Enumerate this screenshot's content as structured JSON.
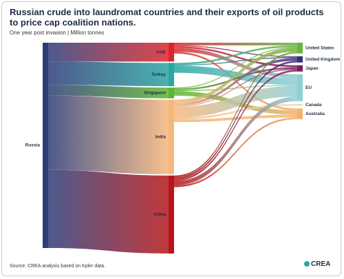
{
  "chart_data": {
    "type": "sankey",
    "title": "Russian crude into laundromat countries and their exports of oil products to price cap coalition nations.",
    "subtitle": "One year post invasion | Million tonnes",
    "source": "Source: CREA analysis based on Kpler data.",
    "logo": "CREA",
    "nodes": [
      {
        "name": "Russia",
        "color": "#2e3d78"
      },
      {
        "name": "UAE",
        "color": "#d9262c"
      },
      {
        "name": "Turkey",
        "color": "#2aa5a3"
      },
      {
        "name": "Singapore",
        "color": "#5cb531"
      },
      {
        "name": "India",
        "color": "#f6b77c"
      },
      {
        "name": "China",
        "color": "#b5161b"
      },
      {
        "name": "United States",
        "color": "#6ab43c"
      },
      {
        "name": "United Kingdom",
        "color": "#3b2d7a"
      },
      {
        "name": "Japan",
        "color": "#7a1f5e"
      },
      {
        "name": "EU",
        "color": "#8fd0d6"
      },
      {
        "name": "Canada",
        "color": "#e9dcb4"
      },
      {
        "name": "Australia",
        "color": "#f5b26b"
      }
    ],
    "links": [
      {
        "source": "Russia",
        "target": "UAE",
        "value": 21
      },
      {
        "source": "Russia",
        "target": "Turkey",
        "value": 26
      },
      {
        "source": "Russia",
        "target": "Singapore",
        "value": 12
      },
      {
        "source": "Russia",
        "target": "India",
        "value": 83
      },
      {
        "source": "Russia",
        "target": "China",
        "value": 87
      },
      {
        "source": "UAE",
        "target": "United States",
        "value": 3
      },
      {
        "source": "UAE",
        "target": "United Kingdom",
        "value": 1
      },
      {
        "source": "UAE",
        "target": "Japan",
        "value": 2
      },
      {
        "source": "UAE",
        "target": "EU",
        "value": 4
      },
      {
        "source": "UAE",
        "target": "Australia",
        "value": 2
      },
      {
        "source": "Turkey",
        "target": "United States",
        "value": 2
      },
      {
        "source": "Turkey",
        "target": "United Kingdom",
        "value": 1
      },
      {
        "source": "Turkey",
        "target": "EU",
        "value": 8
      },
      {
        "source": "Singapore",
        "target": "United States",
        "value": 1
      },
      {
        "source": "Singapore",
        "target": "Japan",
        "value": 2
      },
      {
        "source": "Singapore",
        "target": "EU",
        "value": 1
      },
      {
        "source": "Singapore",
        "target": "Australia",
        "value": 5
      },
      {
        "source": "India",
        "target": "United States",
        "value": 4
      },
      {
        "source": "India",
        "target": "United Kingdom",
        "value": 3
      },
      {
        "source": "India",
        "target": "Japan",
        "value": 1
      },
      {
        "source": "India",
        "target": "EU",
        "value": 12
      },
      {
        "source": "India",
        "target": "Canada",
        "value": 2
      },
      {
        "source": "India",
        "target": "Australia",
        "value": 3
      },
      {
        "source": "China",
        "target": "United States",
        "value": 2
      },
      {
        "source": "China",
        "target": "United Kingdom",
        "value": 2
      },
      {
        "source": "China",
        "target": "Japan",
        "value": 2
      },
      {
        "source": "China",
        "target": "EU",
        "value": 5
      },
      {
        "source": "China",
        "target": "Australia",
        "value": 2
      }
    ]
  }
}
